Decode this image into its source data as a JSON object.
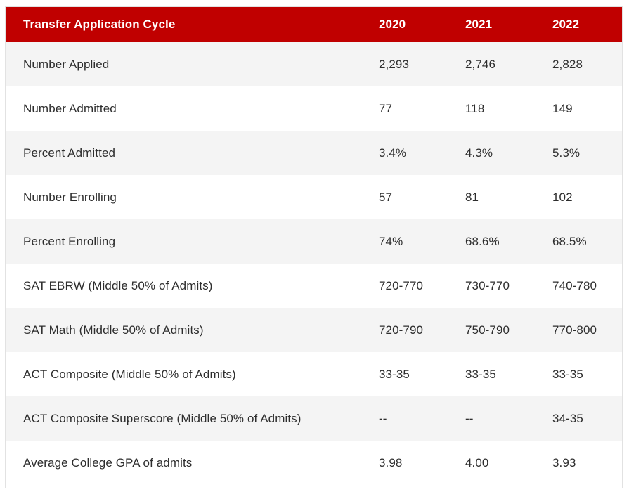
{
  "table": {
    "headers": [
      "Transfer Application Cycle",
      "2020",
      "2021",
      "2022"
    ],
    "rows": [
      {
        "label": "Number Applied",
        "values": [
          "2,293",
          "2,746",
          "2,828"
        ]
      },
      {
        "label": "Number Admitted",
        "values": [
          "77",
          "118",
          "149"
        ]
      },
      {
        "label": "Percent Admitted",
        "values": [
          "3.4%",
          "4.3%",
          "5.3%"
        ]
      },
      {
        "label": "Number Enrolling",
        "values": [
          "57",
          "81",
          "102"
        ]
      },
      {
        "label": "Percent Enrolling",
        "values": [
          "74%",
          "68.6%",
          "68.5%"
        ]
      },
      {
        "label": "SAT EBRW (Middle 50% of Admits)",
        "values": [
          "720-770",
          "730-770",
          "740-780"
        ]
      },
      {
        "label": "SAT Math (Middle 50% of Admits)",
        "values": [
          "720-790",
          "750-790",
          "770-800"
        ]
      },
      {
        "label": "ACT Composite (Middle 50% of Admits)",
        "values": [
          "33-35",
          "33-35",
          "33-35"
        ]
      },
      {
        "label": "ACT Composite Superscore (Middle 50% of Admits)",
        "values": [
          "--",
          "--",
          "34-35"
        ]
      },
      {
        "label": "Average College GPA of admits",
        "values": [
          "3.98",
          "4.00",
          "3.93"
        ]
      }
    ]
  },
  "colors": {
    "header_bg": "#c00000",
    "header_text": "#ffffff",
    "row_alt_bg": "#f4f4f4",
    "text": "#2d2d2d"
  }
}
